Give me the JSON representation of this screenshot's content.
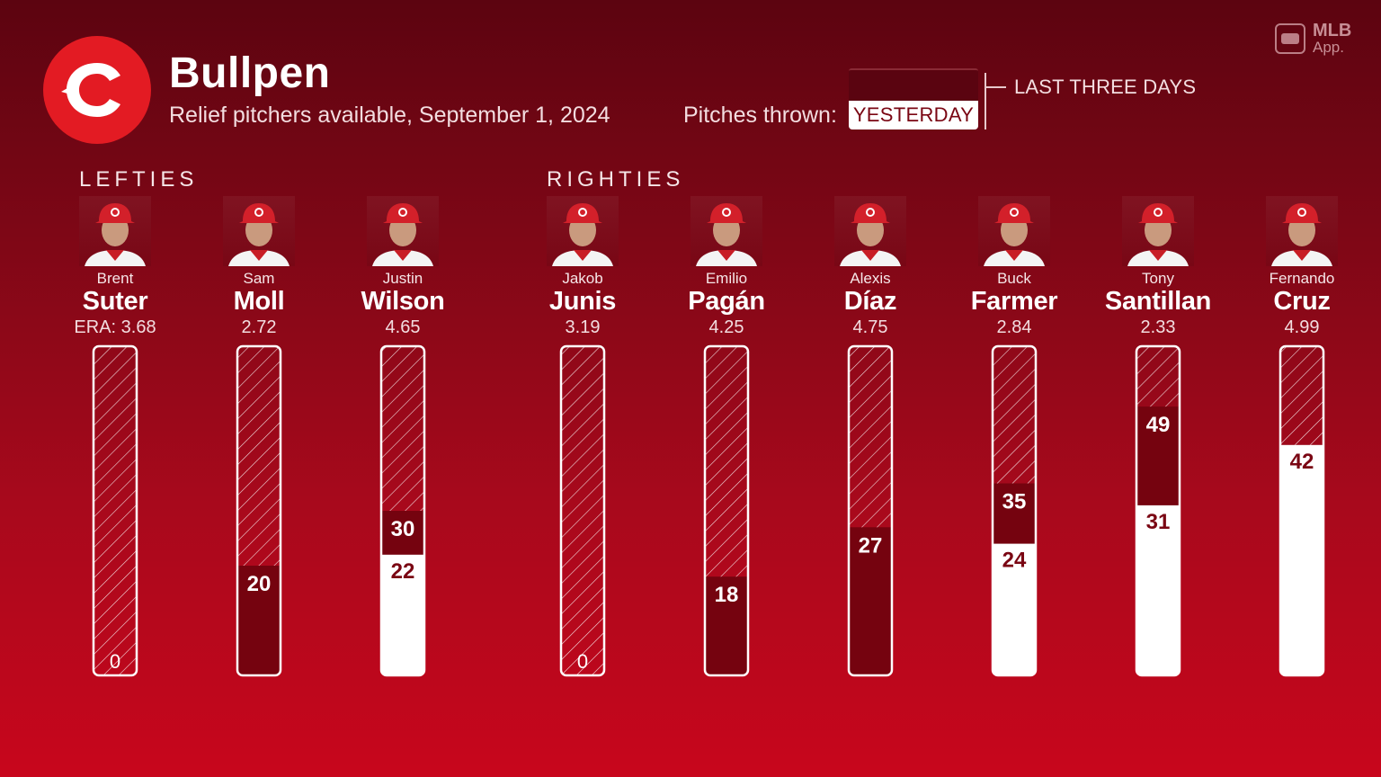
{
  "header": {
    "title": "Bullpen",
    "subtitle": "Relief pitchers available, September 1, 2024",
    "pitches_label": "Pitches thrown:",
    "legend_yesterday": "YESTERDAY",
    "legend_three_days": "LAST THREE DAYS",
    "brand_line1": "MLB",
    "brand_line2": "App."
  },
  "groups": {
    "lefties": "LEFTIES",
    "righties": "RIGHTIES"
  },
  "colors": {
    "team_red": "#e31b23",
    "bar_dark": "#75030f",
    "bar_white": "#ffffff",
    "label_dark": "#7a0613"
  },
  "pitchers": [
    {
      "first": "Brent",
      "last": "Suter",
      "era": "ERA: 3.68"
    },
    {
      "first": "Sam",
      "last": "Moll",
      "era": "2.72"
    },
    {
      "first": "Justin",
      "last": "Wilson",
      "era": "4.65"
    },
    {
      "first": "Jakob",
      "last": "Junis",
      "era": "3.19"
    },
    {
      "first": "Emilio",
      "last": "Pagán",
      "era": "4.25"
    },
    {
      "first": "Alexis",
      "last": "Díaz",
      "era": "4.75"
    },
    {
      "first": "Buck",
      "last": "Farmer",
      "era": "2.84"
    },
    {
      "first": "Tony",
      "last": "Santillan",
      "era": "2.33"
    },
    {
      "first": "Fernando",
      "last": "Cruz",
      "era": "4.99"
    }
  ],
  "chart_data": {
    "type": "bar",
    "title": "Bullpen",
    "subtitle": "Relief pitchers available, September 1, 2024",
    "categories": [
      "Brent Suter",
      "Sam Moll",
      "Justin Wilson",
      "Jakob Junis",
      "Emilio Pagán",
      "Alexis Díaz",
      "Buck Farmer",
      "Tony Santillan",
      "Fernando Cruz"
    ],
    "series": [
      {
        "name": "YESTERDAY",
        "values": [
          0,
          0,
          22,
          0,
          0,
          0,
          24,
          31,
          42
        ]
      },
      {
        "name": "LAST THREE DAYS",
        "values": [
          0,
          20,
          30,
          0,
          18,
          27,
          35,
          49,
          42
        ]
      }
    ],
    "ylim": [
      0,
      60
    ]
  }
}
